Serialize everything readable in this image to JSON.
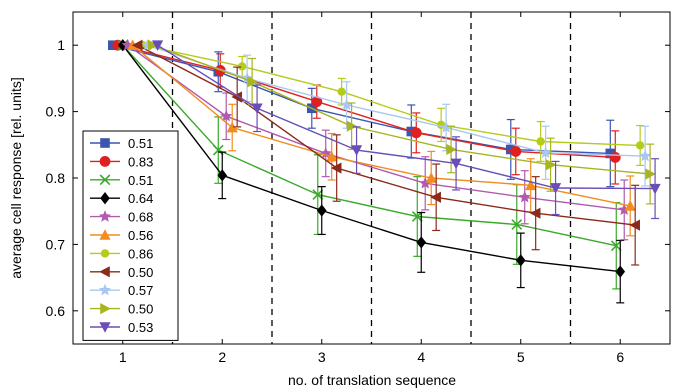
{
  "chart_data": {
    "type": "line",
    "xlabel": "no. of translation sequence",
    "ylabel": "average cell response [rel. units]",
    "xlim": [
      0.5,
      6.5
    ],
    "ylim": [
      0.55,
      1.05
    ],
    "xticks": [
      "1",
      "2",
      "3",
      "4",
      "5",
      "6"
    ],
    "yticks": [
      "0.6",
      "0.7",
      "0.8",
      "0.9",
      "1"
    ],
    "grid": "dashed vertical separators between sequences",
    "legend_position": "left",
    "series": [
      {
        "name": "0.51",
        "color": "#3a56b0",
        "marker": "square",
        "x": [
          0.9,
          1.96,
          2.9,
          3.9,
          4.9,
          5.9
        ],
        "y": [
          1.0,
          0.96,
          0.905,
          0.87,
          0.843,
          0.837
        ],
        "err": [
          0,
          0.03,
          0.03,
          0.04,
          0.045,
          0.05
        ]
      },
      {
        "name": "0.83",
        "color": "#e02020",
        "marker": "circle",
        "x": [
          0.95,
          1.98,
          2.95,
          3.95,
          4.95,
          5.95
        ],
        "y": [
          1.0,
          0.962,
          0.915,
          0.868,
          0.84,
          0.831
        ],
        "err": [
          0,
          0.025,
          0.025,
          0.03,
          0.035,
          0.04
        ]
      },
      {
        "name": "0.51",
        "color": "#3aaa2a",
        "marker": "x",
        "x": [
          1.0,
          1.96,
          2.96,
          3.96,
          4.96,
          5.96
        ],
        "y": [
          1.0,
          0.842,
          0.775,
          0.742,
          0.73,
          0.698
        ],
        "err": [
          0,
          0.05,
          0.06,
          0.06,
          0.06,
          0.065
        ]
      },
      {
        "name": "0.64",
        "color": "#000000",
        "marker": "diamond",
        "x": [
          1.0,
          2.0,
          3.0,
          4.0,
          5.0,
          6.0
        ],
        "y": [
          1.0,
          0.804,
          0.751,
          0.703,
          0.676,
          0.659
        ],
        "err": [
          0,
          0.035,
          0.036,
          0.045,
          0.041,
          0.047
        ]
      },
      {
        "name": "0.68",
        "color": "#b05ab0",
        "marker": "star",
        "x": [
          1.05,
          2.04,
          3.04,
          4.04,
          5.04,
          6.04
        ],
        "y": [
          1.0,
          0.893,
          0.837,
          0.792,
          0.771,
          0.752
        ],
        "err": [
          0,
          0.035,
          0.035,
          0.04,
          0.04,
          0.045
        ]
      },
      {
        "name": "0.56",
        "color": "#f28c1e",
        "marker": "triangle-up",
        "x": [
          1.1,
          2.1,
          3.1,
          4.1,
          5.1,
          6.1
        ],
        "y": [
          1.0,
          0.876,
          0.832,
          0.8,
          0.789,
          0.758
        ],
        "err": [
          0,
          0.035,
          0.035,
          0.04,
          0.04,
          0.045
        ]
      },
      {
        "name": "0.86",
        "color": "#b5cc1a",
        "marker": "dot",
        "x": [
          1.2,
          2.2,
          3.2,
          4.2,
          5.2,
          6.2
        ],
        "y": [
          1.0,
          0.968,
          0.93,
          0.88,
          0.855,
          0.849
        ],
        "err": [
          0,
          0.015,
          0.02,
          0.025,
          0.03,
          0.03
        ]
      },
      {
        "name": "0.50",
        "color": "#8b2a1a",
        "marker": "triangle-left",
        "x": [
          1.15,
          2.15,
          3.15,
          4.15,
          5.15,
          6.15
        ],
        "y": [
          1.0,
          0.922,
          0.815,
          0.771,
          0.747,
          0.729
        ],
        "err": [
          0,
          0.045,
          0.05,
          0.05,
          0.055,
          0.06
        ]
      },
      {
        "name": "0.57",
        "color": "#a8c8ef",
        "marker": "star",
        "x": [
          1.25,
          2.25,
          3.25,
          4.25,
          5.25,
          6.25
        ],
        "y": [
          1.0,
          0.95,
          0.91,
          0.876,
          0.838,
          0.833
        ],
        "err": [
          0,
          0.035,
          0.035,
          0.035,
          0.04,
          0.045
        ]
      },
      {
        "name": "0.50",
        "color": "#a8b420",
        "marker": "triangle-right",
        "x": [
          1.3,
          2.3,
          3.3,
          4.3,
          5.3,
          6.3
        ],
        "y": [
          1.0,
          0.945,
          0.878,
          0.843,
          0.82,
          0.806
        ],
        "err": [
          0,
          0.035,
          0.035,
          0.035,
          0.04,
          0.045
        ]
      },
      {
        "name": "0.53",
        "color": "#6a4eb8",
        "marker": "triangle-down",
        "x": [
          1.35,
          2.35,
          3.35,
          4.35,
          5.35,
          6.35
        ],
        "y": [
          1.0,
          0.905,
          0.842,
          0.822,
          0.785,
          0.784
        ],
        "err": [
          0,
          0.035,
          0.035,
          0.04,
          0.04,
          0.045
        ]
      }
    ]
  }
}
